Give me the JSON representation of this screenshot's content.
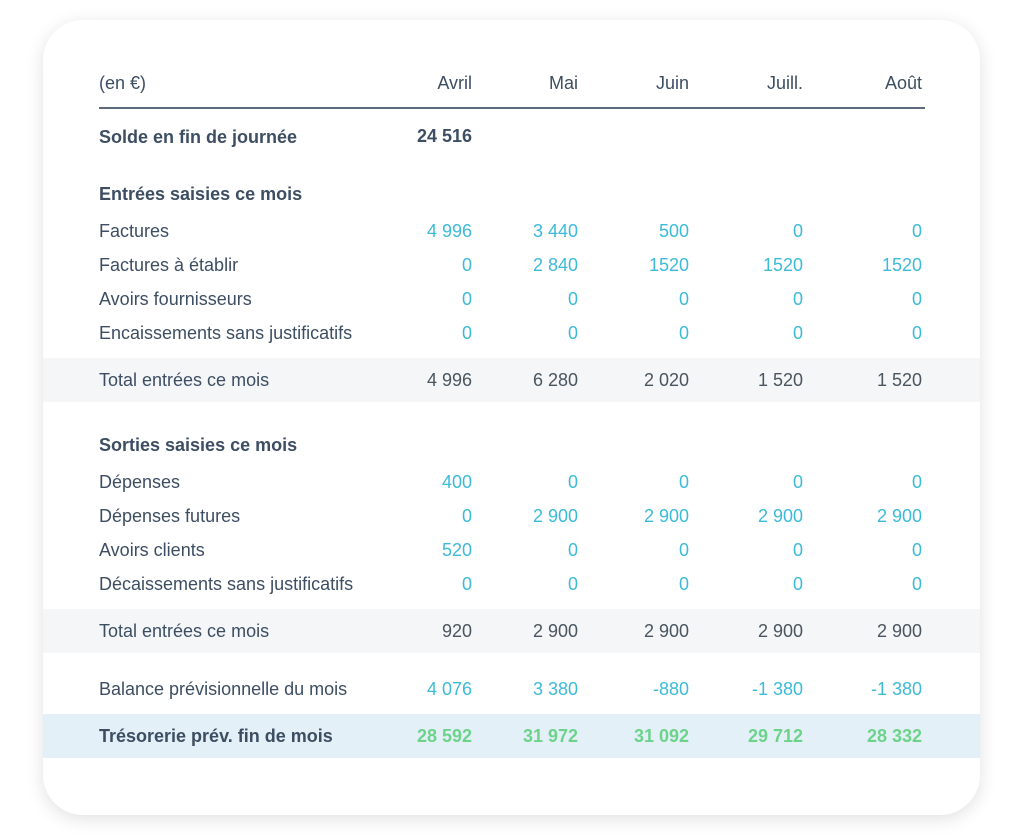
{
  "header": {
    "unit": "(en €)",
    "months": [
      "Avril",
      "Mai",
      "Juin",
      "Juill.",
      "Août"
    ]
  },
  "solde": {
    "label": "Solde en fin de journée",
    "value": "24 516"
  },
  "entrees": {
    "title": "Entrées saisies ce mois",
    "rows": [
      {
        "label": "Factures",
        "values": [
          "4 996",
          "3 440",
          "500",
          "0",
          "0"
        ]
      },
      {
        "label": "Factures à établir",
        "values": [
          "0",
          "2 840",
          "1520",
          "1520",
          "1520"
        ]
      },
      {
        "label": "Avoirs fournisseurs",
        "values": [
          "0",
          "0",
          "0",
          "0",
          "0"
        ]
      },
      {
        "label": "Encaissements sans justificatifs",
        "values": [
          "0",
          "0",
          "0",
          "0",
          "0"
        ]
      }
    ],
    "total": {
      "label": "Total entrées ce mois",
      "values": [
        "4 996",
        "6 280",
        "2 020",
        "1 520",
        "1 520"
      ]
    }
  },
  "sorties": {
    "title": "Sorties saisies ce mois",
    "rows": [
      {
        "label": "Dépenses",
        "values": [
          "400",
          "0",
          "0",
          "0",
          "0"
        ]
      },
      {
        "label": "Dépenses futures",
        "values": [
          "0",
          "2 900",
          "2 900",
          "2 900",
          "2 900"
        ]
      },
      {
        "label": "Avoirs clients",
        "values": [
          "520",
          "0",
          "0",
          "0",
          "0"
        ]
      },
      {
        "label": "Décaissements sans justificatifs",
        "values": [
          "0",
          "0",
          "0",
          "0",
          "0"
        ]
      }
    ],
    "total": {
      "label": "Total entrées ce mois",
      "values": [
        "920",
        "2 900",
        "2 900",
        "2 900",
        "2 900"
      ]
    }
  },
  "balance": {
    "label": "Balance prévisionnelle du mois",
    "values": [
      "4 076",
      "3 380",
      "-880",
      "-1 380",
      "-1 380"
    ]
  },
  "tresorerie": {
    "label": "Trésorerie prév. fin de mois",
    "values": [
      "28 592",
      "31 972",
      "31 092",
      "29 712",
      "28 332"
    ]
  }
}
